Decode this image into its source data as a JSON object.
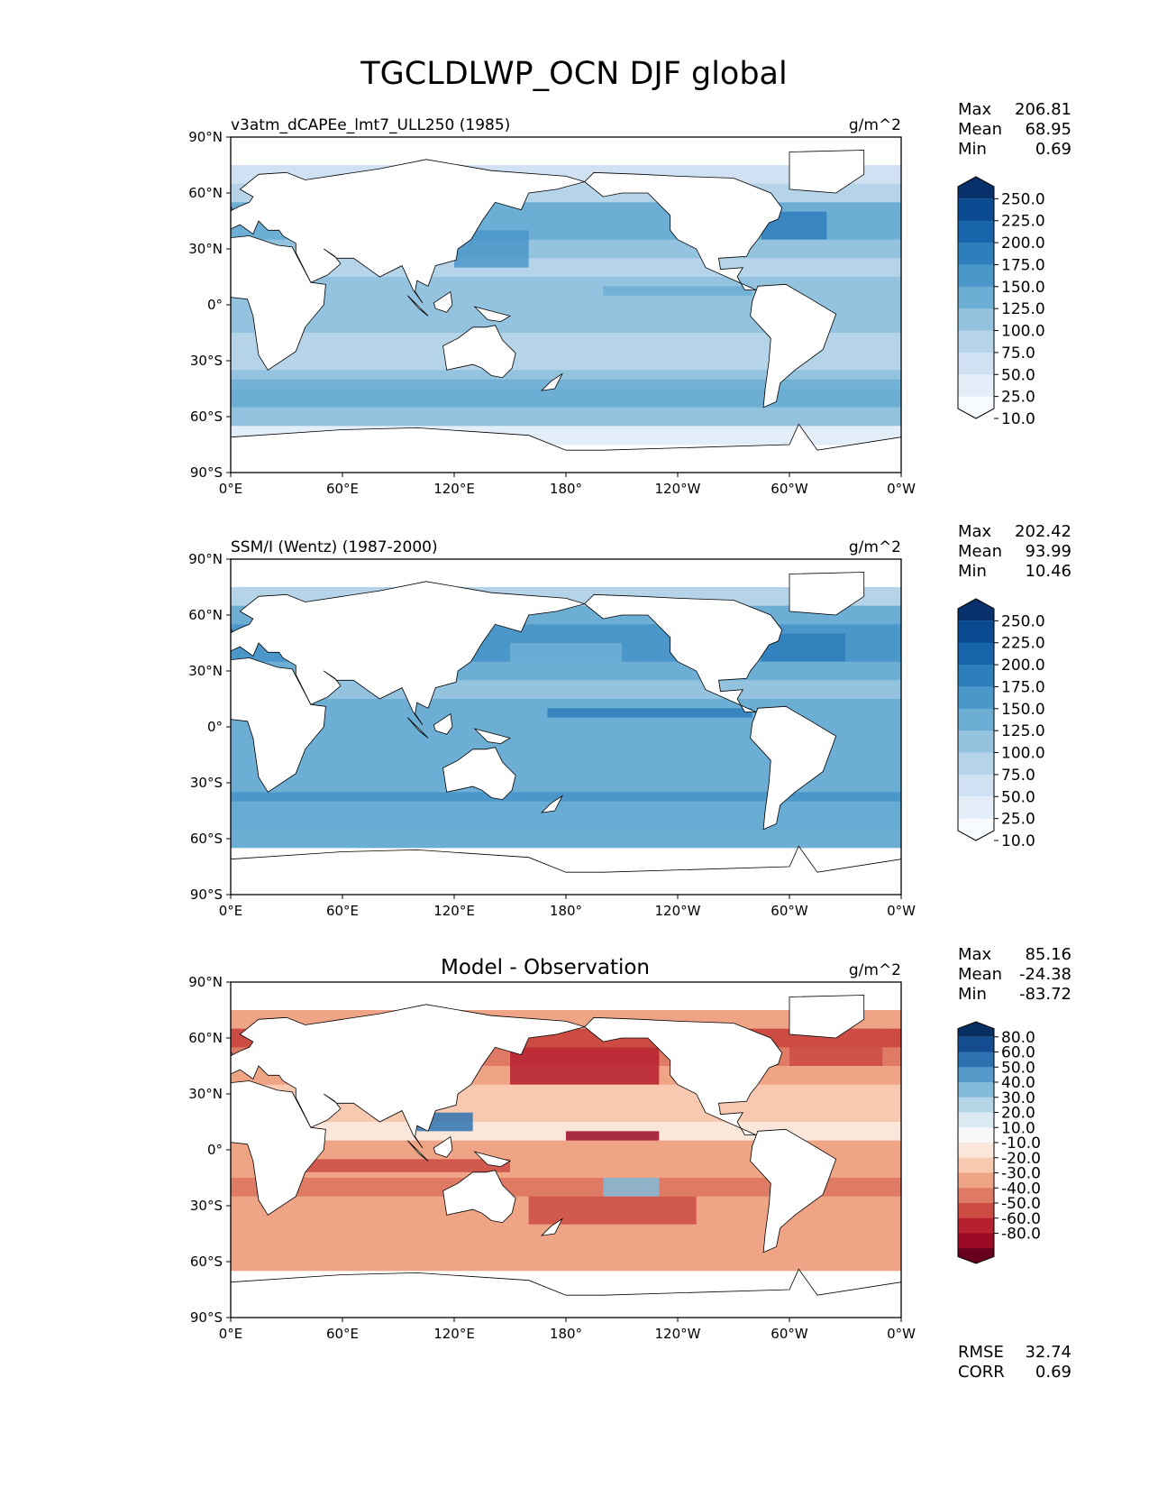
{
  "figure": {
    "title": "TGCLDLWP_OCN DJF global"
  },
  "chart_data": [
    {
      "type": "heatmap",
      "title": "v3atm_dCAPEe_lmt7_ULL250 (1985)",
      "units": "g/m^2",
      "stats": [
        {
          "label": "Max",
          "value": "206.81"
        },
        {
          "label": "Mean",
          "value": "68.95"
        },
        {
          "label": "Min",
          "value": "0.69"
        }
      ],
      "colorbar": {
        "colormap": "Blues",
        "ticks": [
          "250.0",
          "225.0",
          "200.0",
          "175.0",
          "150.0",
          "125.0",
          "100.0",
          "75.0",
          "50.0",
          "25.0",
          "10.0"
        ],
        "colors": [
          "#f7fbff",
          "#e3eef9",
          "#cfe1f2",
          "#b5d4e9",
          "#93c3df",
          "#6daed5",
          "#4b97c9",
          "#2f7ebc",
          "#1864aa",
          "#0a4a90",
          "#08306b"
        ]
      },
      "xlabel_ticks": [
        "0°E",
        "60°E",
        "120°E",
        "180°",
        "120°W",
        "60°W",
        "0°W"
      ],
      "ylabel_ticks": [
        "90°N",
        "60°N",
        "30°N",
        "0°",
        "30°S",
        "60°S",
        "90°S"
      ],
      "xlim": [
        0,
        360
      ],
      "ylim": [
        -90,
        90
      ],
      "field": {
        "lat": [
          70,
          60,
          50,
          40,
          30,
          20,
          10,
          0,
          -10,
          -20,
          -30,
          -40,
          -50,
          -60,
          -70
        ],
        "band_values": [
          40,
          70,
          100,
          110,
          90,
          70,
          80,
          95,
          75,
          70,
          70,
          95,
          110,
          80,
          15
        ]
      }
    },
    {
      "type": "heatmap",
      "title": "SSM/I (Wentz) (1987-2000)",
      "units": "g/m^2",
      "stats": [
        {
          "label": "Max",
          "value": "202.42"
        },
        {
          "label": "Mean",
          "value": "93.99"
        },
        {
          "label": "Min",
          "value": "10.46"
        }
      ],
      "colorbar": {
        "colormap": "Blues",
        "ticks": [
          "250.0",
          "225.0",
          "200.0",
          "175.0",
          "150.0",
          "125.0",
          "100.0",
          "75.0",
          "50.0",
          "25.0",
          "10.0"
        ],
        "colors": [
          "#f7fbff",
          "#e3eef9",
          "#cfe1f2",
          "#b5d4e9",
          "#93c3df",
          "#6daed5",
          "#4b97c9",
          "#2f7ebc",
          "#1864aa",
          "#0a4a90",
          "#08306b"
        ]
      },
      "xlabel_ticks": [
        "0°E",
        "60°E",
        "120°E",
        "180°",
        "120°W",
        "60°W",
        "0°W"
      ],
      "ylabel_ticks": [
        "90°N",
        "60°N",
        "30°N",
        "0°",
        "30°S",
        "60°S",
        "90°S"
      ],
      "xlim": [
        0,
        360
      ],
      "ylim": [
        -90,
        90
      ],
      "field": {
        "lat": [
          70,
          60,
          50,
          40,
          30,
          20,
          10,
          0,
          -10,
          -20,
          -30,
          -40,
          -50,
          -60,
          -70
        ],
        "band_values": [
          60,
          110,
          130,
          135,
          110,
          95,
          110,
          120,
          105,
          100,
          100,
          125,
          135,
          110,
          0
        ]
      }
    },
    {
      "type": "heatmap",
      "title": "Model - Observation",
      "units": "g/m^2",
      "stats": [
        {
          "label": "Max",
          "value": "85.16"
        },
        {
          "label": "Mean",
          "value": "-24.38"
        },
        {
          "label": "Min",
          "value": "-83.72"
        }
      ],
      "footer_stats": [
        {
          "label": "RMSE",
          "value": "32.74"
        },
        {
          "label": "CORR",
          "value": "0.69"
        }
      ],
      "colorbar": {
        "colormap": "RdBu",
        "ticks": [
          "80.0",
          "60.0",
          "50.0",
          "40.0",
          "30.0",
          "20.0",
          "10.0",
          "-10.0",
          "-20.0",
          "-30.0",
          "-40.0",
          "-50.0",
          "-60.0",
          "-80.0"
        ],
        "colors": [
          "#67001f",
          "#9a0a24",
          "#b6202f",
          "#cc4c44",
          "#df7a64",
          "#efa486",
          "#f8c9b0",
          "#fbe6da",
          "#f7f7f7",
          "#dbe9f2",
          "#b4d6e7",
          "#83bcdb",
          "#5499c7",
          "#2d73b2",
          "#134c8f",
          "#053061"
        ]
      },
      "xlabel_ticks": [
        "0°E",
        "60°E",
        "120°E",
        "180°",
        "120°W",
        "60°W",
        "0°W"
      ],
      "ylabel_ticks": [
        "90°N",
        "60°N",
        "30°N",
        "0°",
        "30°S",
        "60°S",
        "90°S"
      ],
      "xlim": [
        0,
        360
      ],
      "ylim": [
        -90,
        90
      ],
      "field": {
        "lat": [
          70,
          60,
          50,
          40,
          30,
          20,
          10,
          0,
          -10,
          -20,
          -30,
          -40,
          -50,
          -60,
          -70
        ],
        "band_values": [
          -30,
          -45,
          -40,
          -30,
          -20,
          -15,
          -10,
          -30,
          -25,
          -35,
          -30,
          -30,
          -25,
          -30,
          0
        ]
      }
    }
  ]
}
